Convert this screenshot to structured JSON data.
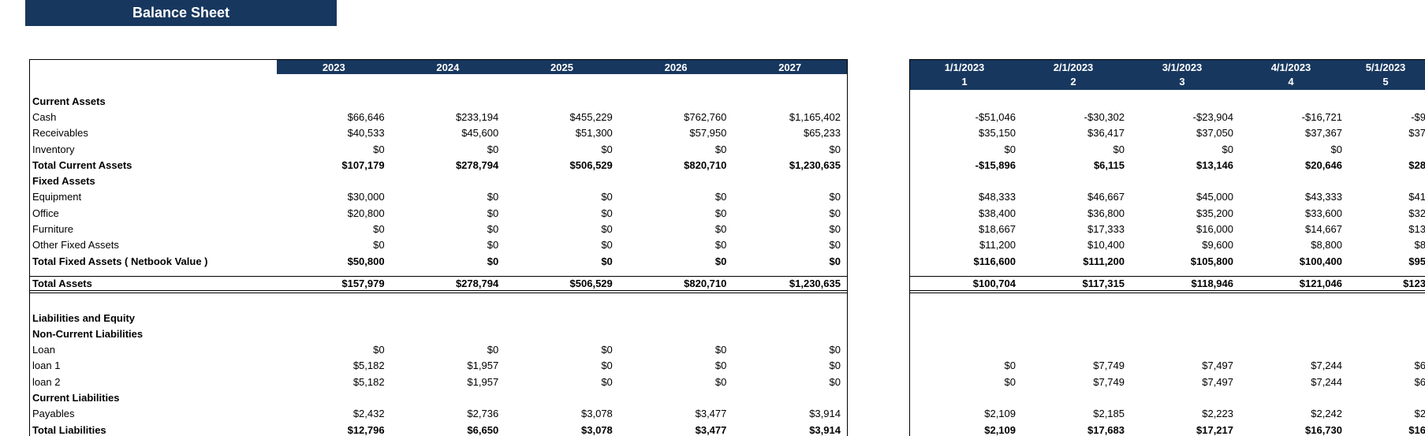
{
  "title": "Balance Sheet",
  "colors": {
    "header_bg": "#17375E",
    "header_text": "#FFFFFF",
    "body_text": "#000000",
    "border": "#000000",
    "background": "#FFFFFF"
  },
  "annual_table": {
    "columns": [
      "2023",
      "2024",
      "2025",
      "2026",
      "2027"
    ],
    "rows": [
      {
        "label": "Current Assets",
        "type": "section",
        "values": [
          "",
          "",
          "",
          "",
          ""
        ]
      },
      {
        "label": "Cash",
        "type": "item",
        "values": [
          "$66,646",
          "$233,194",
          "$455,229",
          "$762,760",
          "$1,165,402"
        ]
      },
      {
        "label": "Receivables",
        "type": "item",
        "values": [
          "$40,533",
          "$45,600",
          "$51,300",
          "$57,950",
          "$65,233"
        ]
      },
      {
        "label": "Inventory",
        "type": "item",
        "values": [
          "$0",
          "$0",
          "$0",
          "$0",
          "$0"
        ]
      },
      {
        "label": "Total Current Assets",
        "type": "total",
        "values": [
          "$107,179",
          "$278,794",
          "$506,529",
          "$820,710",
          "$1,230,635"
        ]
      },
      {
        "label": "Fixed Assets",
        "type": "section",
        "values": [
          "",
          "",
          "",
          "",
          ""
        ]
      },
      {
        "label": "Equipment",
        "type": "item",
        "values": [
          "$30,000",
          "$0",
          "$0",
          "$0",
          "$0"
        ]
      },
      {
        "label": "Office",
        "type": "item",
        "values": [
          "$20,800",
          "$0",
          "$0",
          "$0",
          "$0"
        ]
      },
      {
        "label": "Furniture",
        "type": "item",
        "values": [
          "$0",
          "$0",
          "$0",
          "$0",
          "$0"
        ]
      },
      {
        "label": "Other Fixed Assets",
        "type": "item",
        "values": [
          "$0",
          "$0",
          "$0",
          "$0",
          "$0"
        ]
      },
      {
        "label": "Total Fixed Assets ( Netbook Value )",
        "type": "total",
        "values": [
          "$50,800",
          "$0",
          "$0",
          "$0",
          "$0"
        ]
      },
      {
        "label": "",
        "type": "blank-sm",
        "values": [
          "",
          "",
          "",
          "",
          ""
        ]
      },
      {
        "label": "Total Assets",
        "type": "grand",
        "values": [
          "$157,979",
          "$278,794",
          "$506,529",
          "$820,710",
          "$1,230,635"
        ]
      },
      {
        "label": "",
        "type": "blank-lg",
        "values": [
          "",
          "",
          "",
          "",
          ""
        ]
      },
      {
        "label": "Liabilities and Equity",
        "type": "section",
        "values": [
          "",
          "",
          "",
          "",
          ""
        ]
      },
      {
        "label": "Non-Current Liabilities",
        "type": "section",
        "values": [
          "",
          "",
          "",
          "",
          ""
        ]
      },
      {
        "label": "Loan",
        "type": "item",
        "values": [
          "$0",
          "$0",
          "$0",
          "$0",
          "$0"
        ]
      },
      {
        "label": "loan 1",
        "type": "item",
        "values": [
          "$5,182",
          "$1,957",
          "$0",
          "$0",
          "$0"
        ]
      },
      {
        "label": "loan 2",
        "type": "item",
        "values": [
          "$5,182",
          "$1,957",
          "$0",
          "$0",
          "$0"
        ]
      },
      {
        "label": "Current Liabilities",
        "type": "section",
        "values": [
          "",
          "",
          "",
          "",
          ""
        ]
      },
      {
        "label": "Payables",
        "type": "item",
        "values": [
          "$2,432",
          "$2,736",
          "$3,078",
          "$3,477",
          "$3,914"
        ]
      },
      {
        "label": "Total Liabilities",
        "type": "total",
        "values": [
          "$12,796",
          "$6,650",
          "$3,078",
          "$3,477",
          "$3,914"
        ]
      }
    ]
  },
  "monthly_table": {
    "columns": [
      {
        "date": "1/1/2023",
        "period": "1"
      },
      {
        "date": "2/1/2023",
        "period": "2"
      },
      {
        "date": "3/1/2023",
        "period": "3"
      },
      {
        "date": "4/1/2023",
        "period": "4"
      },
      {
        "date": "5/1/2023",
        "period": "5"
      }
    ],
    "rows": [
      {
        "type": "section",
        "values": [
          "",
          "",
          "",
          "",
          ""
        ]
      },
      {
        "type": "item",
        "values": [
          "-$51,046",
          "-$30,302",
          "-$23,904",
          "-$16,721",
          "-$9"
        ]
      },
      {
        "type": "item",
        "values": [
          "$35,150",
          "$36,417",
          "$37,050",
          "$37,367",
          "$37"
        ]
      },
      {
        "type": "item",
        "values": [
          "$0",
          "$0",
          "$0",
          "$0",
          ""
        ]
      },
      {
        "type": "total",
        "values": [
          "-$15,896",
          "$6,115",
          "$13,146",
          "$20,646",
          "$28"
        ]
      },
      {
        "type": "section",
        "values": [
          "",
          "",
          "",
          "",
          ""
        ]
      },
      {
        "type": "item",
        "values": [
          "$48,333",
          "$46,667",
          "$45,000",
          "$43,333",
          "$41"
        ]
      },
      {
        "type": "item",
        "values": [
          "$38,400",
          "$36,800",
          "$35,200",
          "$33,600",
          "$32"
        ]
      },
      {
        "type": "item",
        "values": [
          "$18,667",
          "$17,333",
          "$16,000",
          "$14,667",
          "$13"
        ]
      },
      {
        "type": "item",
        "values": [
          "$11,200",
          "$10,400",
          "$9,600",
          "$8,800",
          "$8"
        ]
      },
      {
        "type": "total",
        "values": [
          "$116,600",
          "$111,200",
          "$105,800",
          "$100,400",
          "$95"
        ]
      },
      {
        "type": "blank-sm",
        "values": [
          "",
          "",
          "",
          "",
          ""
        ]
      },
      {
        "type": "grand",
        "values": [
          "$100,704",
          "$117,315",
          "$118,946",
          "$121,046",
          "$123"
        ]
      },
      {
        "type": "blank-lg",
        "values": [
          "",
          "",
          "",
          "",
          ""
        ]
      },
      {
        "type": "section",
        "values": [
          "",
          "",
          "",
          "",
          ""
        ]
      },
      {
        "type": "section",
        "values": [
          "",
          "",
          "",
          "",
          ""
        ]
      },
      {
        "type": "item",
        "values": [
          "",
          "",
          "",
          "",
          ""
        ]
      },
      {
        "type": "item",
        "values": [
          "$0",
          "$7,749",
          "$7,497",
          "$7,244",
          "$6"
        ]
      },
      {
        "type": "item",
        "values": [
          "$0",
          "$7,749",
          "$7,497",
          "$7,244",
          "$6"
        ]
      },
      {
        "type": "section",
        "values": [
          "",
          "",
          "",
          "",
          ""
        ]
      },
      {
        "type": "item",
        "values": [
          "$2,109",
          "$2,185",
          "$2,223",
          "$2,242",
          "$2"
        ]
      },
      {
        "type": "total",
        "values": [
          "$2,109",
          "$17,683",
          "$17,217",
          "$16,730",
          "$16"
        ]
      }
    ]
  }
}
